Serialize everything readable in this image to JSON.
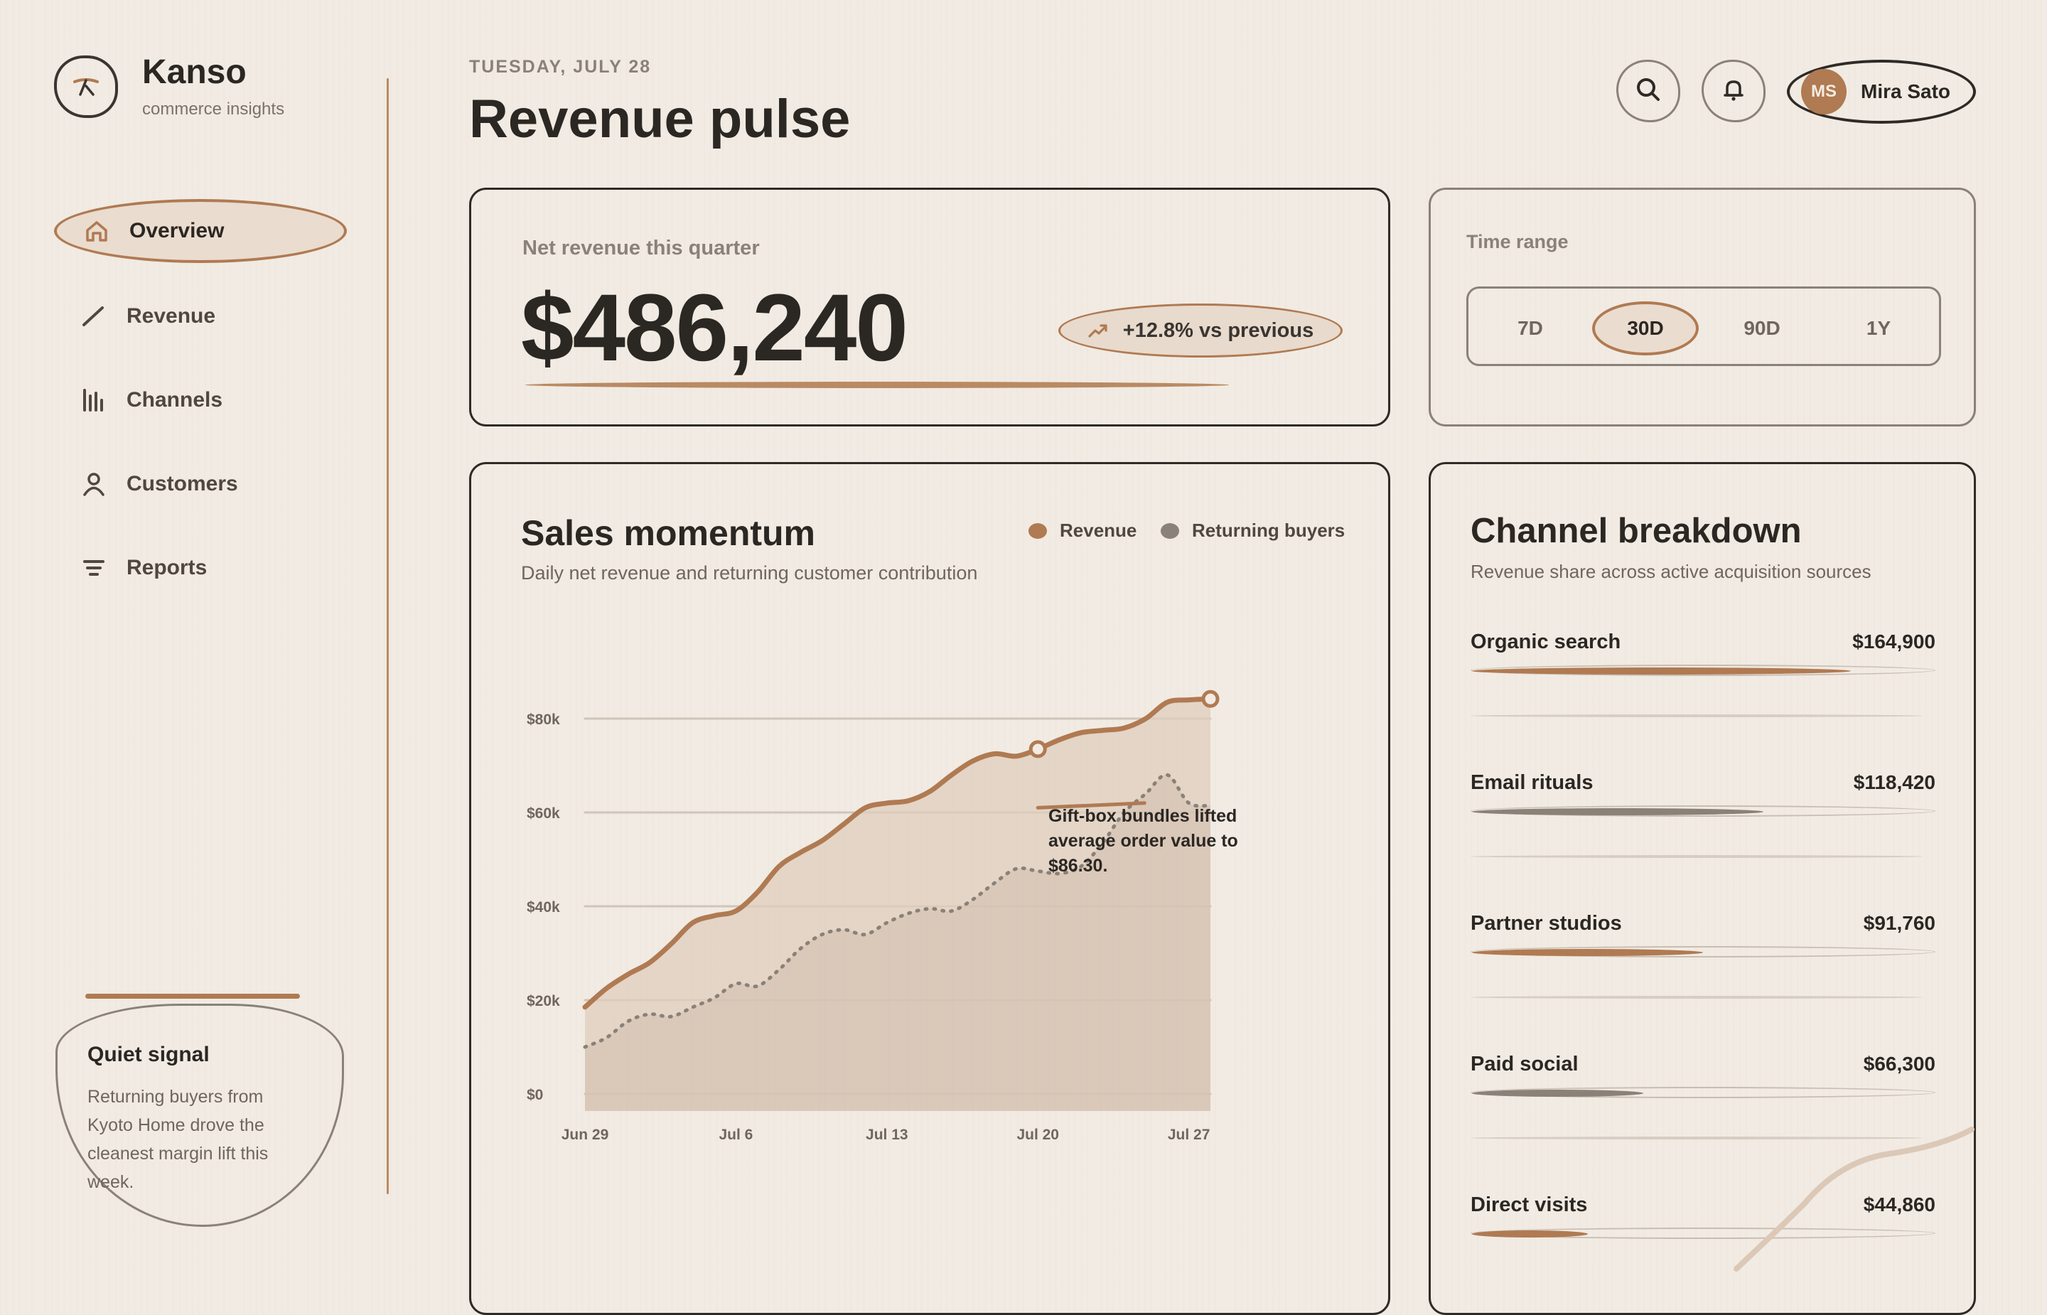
{
  "brand": {
    "name": "Kanso",
    "tagline": "commerce insights"
  },
  "nav": [
    {
      "label": "Overview",
      "icon": "home-icon",
      "active": true
    },
    {
      "label": "Revenue",
      "icon": "trend-icon",
      "active": false
    },
    {
      "label": "Channels",
      "icon": "bar-chart-icon",
      "active": false
    },
    {
      "label": "Customers",
      "icon": "user-icon",
      "active": false
    },
    {
      "label": "Reports",
      "icon": "list-icon",
      "active": false
    }
  ],
  "quiet_signal": {
    "title": "Quiet signal",
    "body": "Returning buyers from Kyoto Home drove the cleanest margin lift this week."
  },
  "header": {
    "date": "TUESDAY, JULY 28",
    "title": "Revenue pulse",
    "user": {
      "initials": "MS",
      "name": "Mira Sato"
    }
  },
  "revenue": {
    "label": "Net revenue this quarter",
    "value": "$486,240",
    "delta": "+12.8% vs previous"
  },
  "time_range": {
    "label": "Time range",
    "options": [
      "7D",
      "30D",
      "90D",
      "1Y"
    ],
    "selected": "30D"
  },
  "sales": {
    "title": "Sales momentum",
    "subtitle": "Daily net revenue and returning customer contribution",
    "annotation": "Gift-box bundles lifted average order value to $86.30."
  },
  "chart_data": {
    "type": "area",
    "x": [
      "Jun 29",
      "Jun 30",
      "Jul 1",
      "Jul 2",
      "Jul 3",
      "Jul 4",
      "Jul 5",
      "Jul 6",
      "Jul 7",
      "Jul 8",
      "Jul 9",
      "Jul 10",
      "Jul 11",
      "Jul 12",
      "Jul 13",
      "Jul 14",
      "Jul 15",
      "Jul 16",
      "Jul 17",
      "Jul 18",
      "Jul 19",
      "Jul 20",
      "Jul 21",
      "Jul 22",
      "Jul 23",
      "Jul 24",
      "Jul 25",
      "Jul 26",
      "Jul 27",
      "Jul 28"
    ],
    "x_tick_labels": [
      "Jun 29",
      "Jul 6",
      "Jul 13",
      "Jul 20",
      "Jul 27"
    ],
    "y_tick_labels": [
      "$0",
      "$20k",
      "$40k",
      "$60k",
      "$80k"
    ],
    "ylim": [
      0,
      80000
    ],
    "legend_position": "top-right",
    "grid": true,
    "series": [
      {
        "name": "Revenue",
        "color": "#b07a52",
        "values": [
          18500,
          22500,
          25500,
          28000,
          32000,
          36500,
          38000,
          39000,
          43000,
          48500,
          51500,
          54000,
          57500,
          61000,
          62000,
          62500,
          64500,
          68000,
          71000,
          72500,
          72000,
          73500,
          75500,
          77000,
          77500,
          78000,
          80000,
          83500,
          84000,
          84200
        ]
      },
      {
        "name": "Returning buyers",
        "color": "#8a8178",
        "values": [
          10000,
          12000,
          15500,
          17000,
          16500,
          18500,
          20500,
          23500,
          23000,
          26500,
          31000,
          34000,
          35000,
          34000,
          36500,
          38500,
          39500,
          39000,
          41500,
          45000,
          48000,
          47500,
          47000,
          48500,
          53500,
          60000,
          64000,
          68000,
          62000,
          61500
        ]
      }
    ]
  },
  "channels": {
    "title": "Channel breakdown",
    "subtitle": "Revenue share across active acquisition sources",
    "items": [
      {
        "name": "Organic search",
        "value": "$164,900",
        "share": 0.82,
        "color": "#b07a52"
      },
      {
        "name": "Email rituals",
        "value": "$118,420",
        "share": 0.63,
        "color": "#8a8178"
      },
      {
        "name": "Partner studios",
        "value": "$91,760",
        "share": 0.5,
        "color": "#b07a52"
      },
      {
        "name": "Paid social",
        "value": "$66,300",
        "share": 0.37,
        "color": "#8a8178"
      },
      {
        "name": "Direct visits",
        "value": "$44,860",
        "share": 0.25,
        "color": "#b07a52"
      }
    ]
  }
}
